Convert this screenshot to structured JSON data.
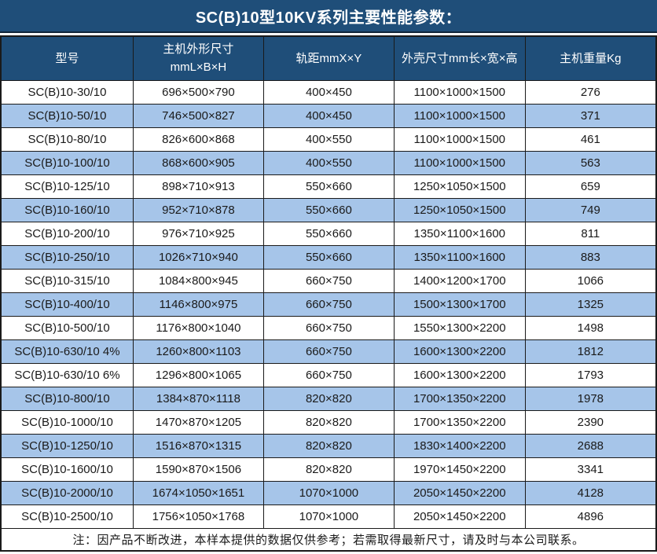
{
  "title": "SC(B)10型10KV系列主要性能参数：",
  "colors": {
    "header_bg": "#1F4E79",
    "stripe_row_bg": "#A6C5E9",
    "border": "#1A1A1A",
    "header_text": "#FFFFFF",
    "body_text": "#1A1A1A"
  },
  "table": {
    "columns": [
      {
        "label": "型号"
      },
      {
        "label": "主机外形尺寸",
        "sub": "mmL×B×H"
      },
      {
        "label": "轨距mmX×Y"
      },
      {
        "label": "外壳尺寸mm长×宽×高"
      },
      {
        "label": "主机重量Kg"
      }
    ],
    "rows": [
      [
        "SC(B)10-30/10",
        "696×500×790",
        "400×450",
        "1100×1000×1500",
        "276"
      ],
      [
        "SC(B)10-50/10",
        "746×500×827",
        "400×450",
        "1100×1000×1500",
        "371"
      ],
      [
        "SC(B)10-80/10",
        "826×600×868",
        "400×550",
        "1100×1000×1500",
        "461"
      ],
      [
        "SC(B)10-100/10",
        "868×600×905",
        "400×550",
        "1100×1000×1500",
        "563"
      ],
      [
        "SC(B)10-125/10",
        "898×710×913",
        "550×660",
        "1250×1050×1500",
        "659"
      ],
      [
        "SC(B)10-160/10",
        "952×710×878",
        "550×660",
        "1250×1050×1500",
        "749"
      ],
      [
        "SC(B)10-200/10",
        "976×710×925",
        "550×660",
        "1350×1100×1600",
        "811"
      ],
      [
        "SC(B)10-250/10",
        "1026×710×940",
        "550×660",
        "1350×1100×1600",
        "883"
      ],
      [
        "SC(B)10-315/10",
        "1084×800×945",
        "660×750",
        "1400×1200×1700",
        "1066"
      ],
      [
        "SC(B)10-400/10",
        "1146×800×975",
        "660×750",
        "1500×1300×1700",
        "1325"
      ],
      [
        "SC(B)10-500/10",
        "1176×800×1040",
        "660×750",
        "1550×1300×2200",
        "1498"
      ],
      [
        "SC(B)10-630/10 4%",
        "1260×800×1103",
        "660×750",
        "1600×1300×2200",
        "1812"
      ],
      [
        "SC(B)10-630/10 6%",
        "1296×800×1065",
        "660×750",
        "1600×1300×2200",
        "1793"
      ],
      [
        "SC(B)10-800/10",
        "1384×870×1118",
        "820×820",
        "1700×1350×2200",
        "1978"
      ],
      [
        "SC(B)10-1000/10",
        "1470×870×1205",
        "820×820",
        "1700×1350×2200",
        "2390"
      ],
      [
        "SC(B)10-1250/10",
        "1516×870×1315",
        "820×820",
        "1830×1400×2200",
        "2688"
      ],
      [
        "SC(B)10-1600/10",
        "1590×870×1506",
        "820×820",
        "1970×1450×2200",
        "3341"
      ],
      [
        "SC(B)10-2000/10",
        "1674×1050×1651",
        "1070×1000",
        "2050×1450×2200",
        "4128"
      ],
      [
        "SC(B)10-2500/10",
        "1756×1050×1768",
        "1070×1000",
        "2050×1450×2200",
        "4896"
      ]
    ],
    "note": "注：因产品不断改进，本样本提供的数据仅供参考；若需取得最新尺寸，请及时与本公司联系。"
  }
}
